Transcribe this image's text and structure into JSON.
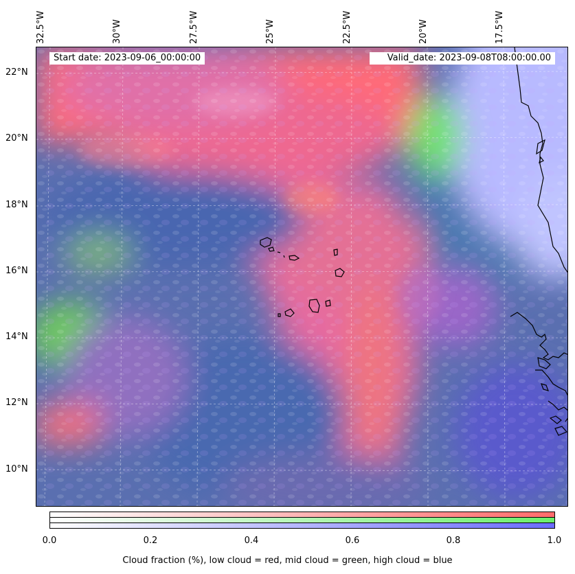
{
  "map": {
    "start_date": "Start date: 2023-09-06_00:00:00",
    "valid_date": "Valid_date: 2023-09-08T08:00:00.00",
    "lon_labels": [
      "32.5°W",
      "30°W",
      "27.5°W",
      "25°W",
      "22.5°W",
      "20°W",
      "17.5°W"
    ],
    "lat_labels": [
      "22°N",
      "20°N",
      "18°N",
      "16°N",
      "14°N",
      "12°N",
      "10°N"
    ],
    "colors": {
      "low_cloud": "#ff6b6b",
      "mid_cloud": "#6bef6b",
      "high_cloud": "#6b6bff",
      "coast": "#000000"
    }
  },
  "colorbar": {
    "ticks": [
      "0.0",
      "0.2",
      "0.4",
      "0.6",
      "0.8",
      "1.0"
    ],
    "label": "Cloud fraction (%), low cloud = red, mid cloud = green, high cloud = blue"
  }
}
